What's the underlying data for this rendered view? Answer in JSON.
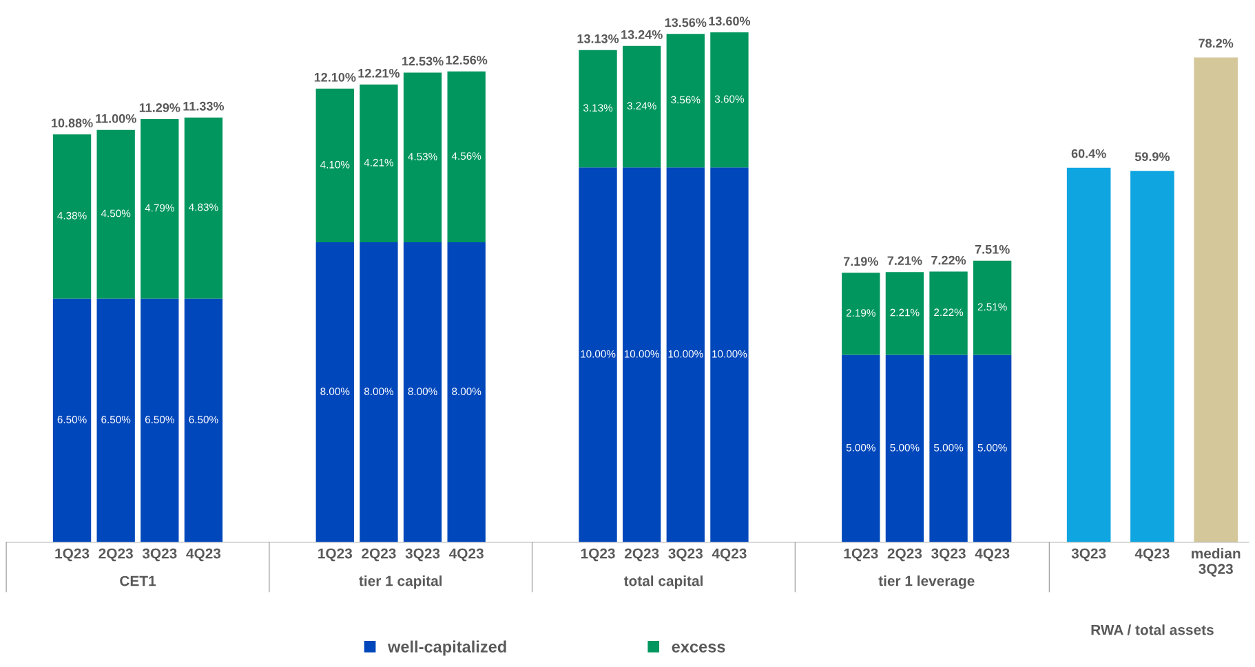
{
  "chart_data": {
    "type": "bar",
    "stacked": true,
    "categories": [
      "1Q23",
      "2Q23",
      "3Q23",
      "4Q23",
      "1Q23",
      "2Q23",
      "3Q23",
      "4Q23",
      "1Q23",
      "2Q23",
      "3Q23",
      "4Q23",
      "1Q23",
      "2Q23",
      "3Q23",
      "4Q23",
      "3Q23",
      "4Q23",
      "median\n3Q23"
    ],
    "series": [
      {
        "name": "well-capitalized",
        "color": "#0047bb",
        "values": [
          6.5,
          6.5,
          6.5,
          6.5,
          8.0,
          8.0,
          8.0,
          8.0,
          10.0,
          10.0,
          10.0,
          10.0,
          5.0,
          5.0,
          5.0,
          5.0,
          null,
          null,
          null
        ],
        "value_labels": [
          "6.50%",
          "6.50%",
          "6.50%",
          "6.50%",
          "8.00%",
          "8.00%",
          "8.00%",
          "8.00%",
          "10.00%",
          "10.00%",
          "10.00%",
          "10.00%",
          "5.00%",
          "5.00%",
          "5.00%",
          "5.00%",
          null,
          null,
          null
        ]
      },
      {
        "name": "excess",
        "color": "#00965e",
        "values": [
          4.38,
          4.5,
          4.79,
          4.83,
          4.1,
          4.21,
          4.53,
          4.56,
          3.13,
          3.24,
          3.56,
          3.6,
          2.19,
          2.21,
          2.22,
          2.51,
          null,
          null,
          null
        ],
        "value_labels": [
          "4.38%",
          "4.50%",
          "4.79%",
          "4.83%",
          "4.10%",
          "4.21%",
          "4.53%",
          "4.56%",
          "3.13%",
          "3.24%",
          "3.56%",
          "3.60%",
          "2.19%",
          "2.21%",
          "2.22%",
          "2.51%",
          null,
          null,
          null
        ]
      },
      {
        "axis": "y2",
        "colors": [
          null,
          null,
          null,
          null,
          null,
          null,
          null,
          null,
          null,
          null,
          null,
          null,
          null,
          null,
          null,
          null,
          "#0ea5e0",
          "#0ea5e0",
          "#d4c89a"
        ],
        "values": [
          null,
          null,
          null,
          null,
          null,
          null,
          null,
          null,
          null,
          null,
          null,
          null,
          null,
          null,
          null,
          null,
          60.4,
          59.9,
          78.2
        ],
        "value_labels": [
          null,
          null,
          null,
          null,
          null,
          null,
          null,
          null,
          null,
          null,
          null,
          null,
          null,
          null,
          null,
          null,
          "60.4%",
          "59.9%",
          "78.2%"
        ]
      }
    ],
    "totals": [
      "10.88%",
      "11.00%",
      "11.29%",
      "11.33%",
      "12.10%",
      "12.21%",
      "12.53%",
      "12.56%",
      "13.13%",
      "13.24%",
      "13.56%",
      "13.60%",
      "7.19%",
      "7.21%",
      "7.22%",
      "7.51%",
      null,
      null,
      null
    ],
    "annotations": [
      "CET1",
      "tier 1 capital",
      "total capital",
      "tier 1 leverage",
      "RWA / total assets"
    ],
    "tick_labels": "x",
    "grid": false,
    "legend": "bottom"
  }
}
